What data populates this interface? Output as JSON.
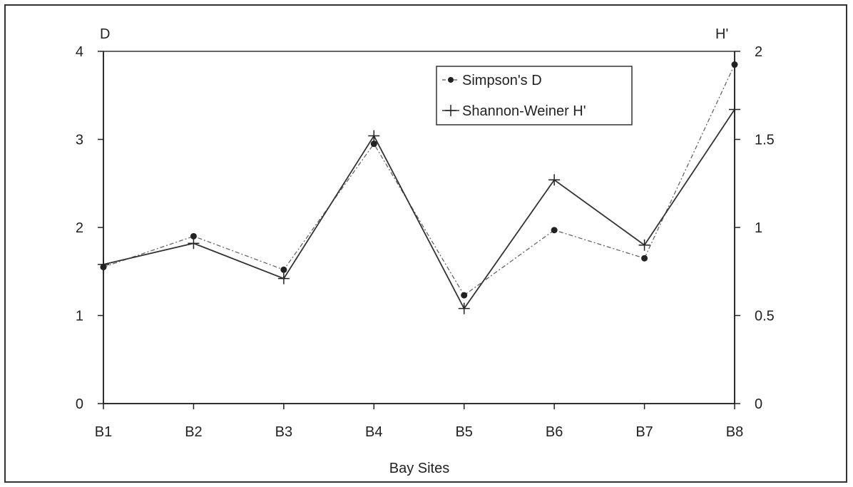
{
  "chart_data": {
    "type": "line",
    "categories": [
      "B1",
      "B2",
      "B3",
      "B4",
      "B5",
      "B6",
      "B7",
      "B8"
    ],
    "xlabel": "Bay Sites",
    "y_left": {
      "label": "D",
      "lim": [
        0,
        4
      ],
      "ticks": [
        0,
        1,
        2,
        3,
        4
      ]
    },
    "y_right": {
      "label": "H'",
      "lim": [
        0,
        2
      ],
      "ticks": [
        "0",
        "0.5",
        "1",
        "1.5",
        "2"
      ]
    },
    "legend_position": "top-right",
    "series": [
      {
        "name": "Simpson's D",
        "axis": "left",
        "marker": "dot",
        "values": [
          1.55,
          1.9,
          1.52,
          2.95,
          1.23,
          1.97,
          1.65,
          3.85
        ]
      },
      {
        "name": "Shannon-Weiner H'",
        "axis": "right",
        "marker": "plus",
        "values": [
          0.79,
          0.91,
          0.71,
          1.52,
          0.54,
          1.27,
          0.9,
          1.67
        ]
      }
    ]
  }
}
